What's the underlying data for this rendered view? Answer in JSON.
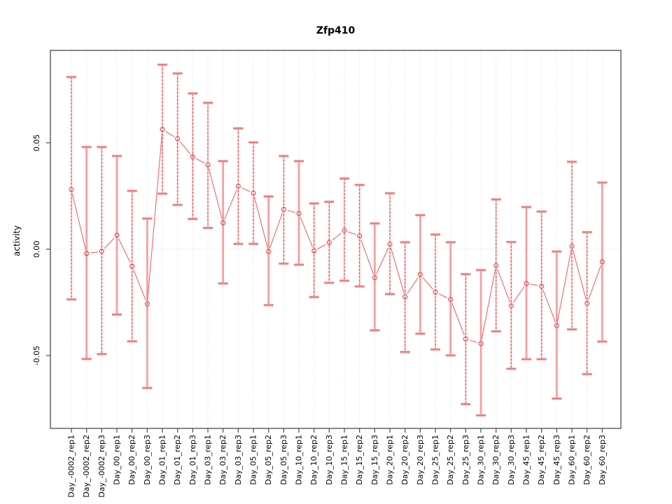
{
  "figure": {
    "title": "Zfp410"
  },
  "colors": {
    "series_line": "#ef6464",
    "marker_stroke": "#e14b4b",
    "errorbar_dashed": "#df4a4a",
    "errorbar_solid_pale": "#f5a0a0",
    "errorbar_halo": "#fbd2d2",
    "cap_pale": "#f29d9d",
    "cap_core": "#e87070",
    "gridline": "#dcdcdc",
    "zero_line": "#d4d4d4",
    "frame": "#4a4a4a",
    "tick": "#4a4a4a",
    "text": "#000000"
  },
  "chart_data": {
    "type": "line",
    "title": "Zfp410",
    "xlabel": "",
    "ylabel": "activity",
    "ylim": [
      -0.084,
      0.093
    ],
    "grid": "vertical dotted line per category; horizontal dotted line at y=0 only",
    "legend_position": "none",
    "marker": "open-circle",
    "line_style": "points joined by segments with gaps (R type='b')",
    "yticks": [
      0.05,
      0.0,
      -0.05
    ],
    "ytick_labels": [
      "0.05",
      "0.00",
      "-0.05"
    ],
    "categories": [
      "Day_-0002_rep1",
      "Day_-0002_rep2",
      "Day_-0002_rep3",
      "Day_00_rep1",
      "Day_00_rep2",
      "Day_00_rep3",
      "Day_01_rep1",
      "Day_01_rep2",
      "Day_01_rep3",
      "Day_03_rep1",
      "Day_03_rep2",
      "Day_03_rep3",
      "Day_05_rep1",
      "Day_05_rep2",
      "Day_05_rep3",
      "Day_10_rep1",
      "Day_10_rep2",
      "Day_10_rep3",
      "Day_15_rep1",
      "Day_15_rep2",
      "Day_15_rep3",
      "Day_20_rep1",
      "Day_20_rep2",
      "Day_20_rep3",
      "Day_25_rep1",
      "Day_25_rep2",
      "Day_25_rep3",
      "Day_30_rep1",
      "Day_30_rep2",
      "Day_30_rep3",
      "Day_45_rep1",
      "Day_45_rep2",
      "Day_45_rep3",
      "Day_60_rep1",
      "Day_60_rep2",
      "Day_60_rep3"
    ],
    "series": [
      {
        "name": "activity",
        "values": [
          0.028,
          -0.002,
          -0.001,
          0.0066,
          -0.008,
          -0.0257,
          0.0563,
          0.0519,
          0.0434,
          0.0396,
          0.0124,
          0.0296,
          0.0263,
          -0.0011,
          0.0187,
          0.0168,
          -0.0008,
          0.0031,
          0.0088,
          0.0062,
          -0.0134,
          0.0023,
          -0.0224,
          -0.0119,
          -0.0202,
          -0.0236,
          -0.0422,
          -0.0443,
          -0.0077,
          -0.0266,
          -0.0161,
          -0.0174,
          -0.0359,
          0.0014,
          -0.0254,
          -0.0059
        ],
        "error_low": [
          -0.0236,
          -0.0516,
          -0.0493,
          -0.0307,
          -0.0433,
          -0.0652,
          0.0261,
          0.0208,
          0.0142,
          0.01,
          -0.0161,
          0.0025,
          0.0025,
          -0.0263,
          -0.0068,
          -0.0073,
          -0.0225,
          -0.0158,
          -0.0148,
          -0.0175,
          -0.0381,
          -0.0211,
          -0.0483,
          -0.0397,
          -0.0471,
          -0.0499,
          -0.0728,
          -0.0781,
          -0.0386,
          -0.0562,
          -0.0517,
          -0.0517,
          -0.0702,
          -0.0377,
          -0.0587,
          -0.0434
        ],
        "error_high": [
          0.0809,
          0.048,
          0.048,
          0.0438,
          0.0274,
          0.0144,
          0.0867,
          0.0826,
          0.0732,
          0.0688,
          0.0414,
          0.0568,
          0.0502,
          0.0248,
          0.0438,
          0.0414,
          0.0215,
          0.0223,
          0.0332,
          0.0302,
          0.0121,
          0.0263,
          0.0033,
          0.016,
          0.0069,
          0.0033,
          -0.0117,
          -0.0098,
          0.0234,
          0.0034,
          0.0198,
          0.0177,
          -0.0011,
          0.0411,
          0.008,
          0.0313
        ],
        "errorbar_styles": [
          "dashed",
          "solid",
          "dashed",
          "solid",
          "dashed",
          "solid",
          "dashed",
          "dashed",
          "dashed",
          "dashed",
          "solid",
          "dashed",
          "dashed",
          "solid",
          "dashed",
          "solid",
          "dashed",
          "dashed",
          "dashed",
          "dashed",
          "solid",
          "dashed",
          "dashed",
          "solid",
          "dashed",
          "solid",
          "dashed",
          "solid",
          "dashed",
          "dashed",
          "solid",
          "dashed",
          "solid",
          "dashed",
          "dashed",
          "solid"
        ]
      }
    ]
  }
}
